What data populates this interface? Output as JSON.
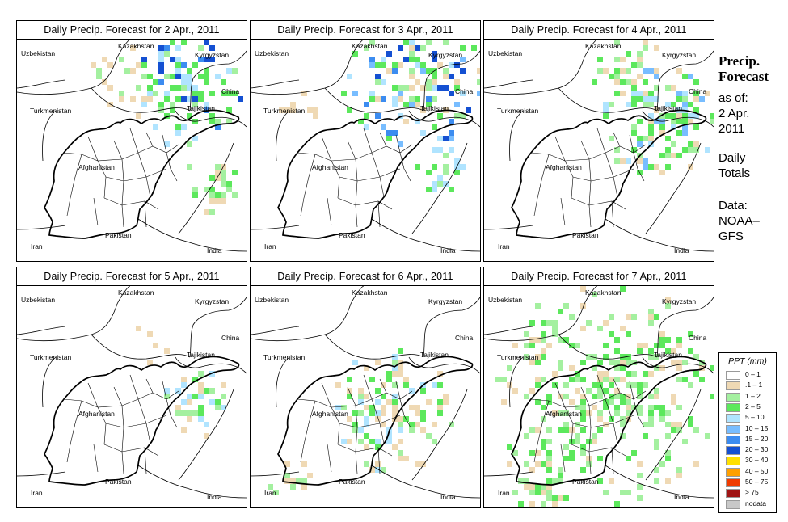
{
  "panels": [
    {
      "title": "Daily Precip. Forecast for  2 Apr., 2011"
    },
    {
      "title": "Daily Precip. Forecast for  3 Apr., 2011"
    },
    {
      "title": "Daily Precip. Forecast for  4 Apr., 2011"
    },
    {
      "title": "Daily Precip. Forecast for  5 Apr., 2011"
    },
    {
      "title": "Daily Precip. Forecast for  6 Apr., 2011"
    },
    {
      "title": "Daily Precip. Forecast for  7 Apr., 2011"
    }
  ],
  "countries": {
    "uzbekistan": "Uzbekistan",
    "kazakhstan": "Kazakhstan",
    "kyrgyzstan": "Kyrgyzstan",
    "china": "China",
    "turkmenistan": "Turkmenistan",
    "tajikistan": "Tajikistan",
    "afghanistan": "Afghanistan",
    "iran": "Iran",
    "pakistan": "Pakistan",
    "india": "India"
  },
  "side": {
    "title1": "Precip.",
    "title2": "Forecast",
    "asof": "as of:",
    "date1": "2 Apr.",
    "date2": "2011",
    "totals1": "Daily",
    "totals2": "Totals",
    "data1": "Data:",
    "data2": "NOAA–",
    "data3": "GFS"
  },
  "legend": {
    "title": "PPT (mm)",
    "items": [
      {
        "label": "0 – 1",
        "color": "#ffffff"
      },
      {
        "label": ".1 – 1",
        "color": "#efd9b4"
      },
      {
        "label": "1 – 2",
        "color": "#a4f0a0"
      },
      {
        "label": "2 – 5",
        "color": "#5ce85c"
      },
      {
        "label": "5 – 10",
        "color": "#b0e4ff"
      },
      {
        "label": "10 – 15",
        "color": "#78bdff"
      },
      {
        "label": "15 – 20",
        "color": "#3c8cf0"
      },
      {
        "label": "20 – 30",
        "color": "#1450d2"
      },
      {
        "label": "30 – 40",
        "color": "#ffe000"
      },
      {
        "label": "40 – 50",
        "color": "#ffa000"
      },
      {
        "label": "50 – 75",
        "color": "#f03c00"
      },
      {
        "label": "> 75",
        "color": "#a01414"
      },
      {
        "label": "nodata",
        "color": "#c8c8c8"
      }
    ]
  }
}
